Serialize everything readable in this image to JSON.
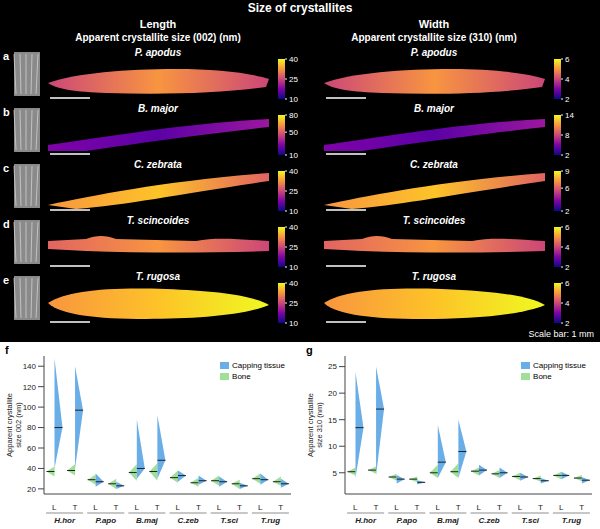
{
  "title": "Size of crystallites",
  "columns": [
    {
      "head": "Length",
      "subtitle": "Apparent crystallite size (002) (nm)"
    },
    {
      "head": "Width",
      "subtitle": "Apparent crystallite size (310) (nm)"
    }
  ],
  "rows": [
    {
      "letter": "a",
      "species": "P. apodus",
      "length_colorbar": {
        "range": [
          10,
          40
        ],
        "ticks": [
          10,
          25,
          40
        ]
      },
      "width_colorbar": {
        "range": [
          2,
          6
        ],
        "ticks": [
          2,
          4,
          6
        ]
      }
    },
    {
      "letter": "b",
      "species": "B. major",
      "length_colorbar": {
        "range": [
          10,
          80
        ],
        "ticks": [
          10,
          50,
          80
        ]
      },
      "width_colorbar": {
        "range": [
          2,
          14
        ],
        "ticks": [
          2,
          8,
          14
        ]
      }
    },
    {
      "letter": "c",
      "species": "C. zebrata",
      "length_colorbar": {
        "range": [
          10,
          40
        ],
        "ticks": [
          10,
          25,
          40
        ]
      },
      "width_colorbar": {
        "range": [
          2,
          9
        ],
        "ticks": [
          2,
          6,
          9
        ]
      }
    },
    {
      "letter": "d",
      "species": "T. scincoides",
      "length_colorbar": {
        "range": [
          10,
          40
        ],
        "ticks": [
          10,
          25,
          40
        ]
      },
      "width_colorbar": {
        "range": [
          2,
          6
        ],
        "ticks": [
          2,
          4,
          6
        ]
      }
    },
    {
      "letter": "e",
      "species": "T. rugosa",
      "length_colorbar": {
        "range": [
          10,
          40
        ],
        "ticks": [
          10,
          25,
          40
        ]
      },
      "width_colorbar": {
        "range": [
          2,
          6
        ],
        "ticks": [
          2,
          4,
          6
        ]
      }
    }
  ],
  "scale_note": "Scale bar: 1 mm",
  "chart_data": [
    {
      "letter": "f",
      "type": "violin",
      "y_label": "Apparent crystallite size 002 (nm)",
      "categories": [
        "L",
        "T",
        "L",
        "T",
        "L",
        "T",
        "L",
        "T",
        "L",
        "T",
        "L",
        "T"
      ],
      "groups": [
        "H.hor",
        "P.apo",
        "B.maj",
        "C.zeb",
        "T.sci",
        "T.rug"
      ],
      "ylim": [
        15,
        150
      ],
      "yticks": [
        20,
        40,
        60,
        80,
        100,
        120,
        140
      ],
      "legend": "top-right",
      "series": [
        {
          "name": "Capping tissue",
          "color": "#6aaee8",
          "median": [
            80,
            97,
            27,
            23,
            40,
            48,
            33,
            28,
            27,
            23,
            29,
            25
          ],
          "low": [
            40,
            40,
            22,
            20,
            30,
            30,
            27,
            24,
            22,
            20,
            24,
            21
          ],
          "high": [
            148,
            140,
            35,
            27,
            88,
            92,
            38,
            33,
            32,
            26,
            35,
            30
          ]
        },
        {
          "name": "Bone",
          "color": "#9fdf98",
          "median": [
            37,
            38,
            29,
            25,
            36,
            37,
            31,
            26,
            28,
            25,
            30,
            27
          ],
          "low": [
            32,
            33,
            24,
            20,
            28,
            28,
            26,
            22,
            23,
            20,
            25,
            23
          ],
          "high": [
            42,
            44,
            34,
            30,
            44,
            45,
            38,
            31,
            33,
            29,
            35,
            32
          ]
        }
      ]
    },
    {
      "letter": "g",
      "type": "violin",
      "y_label": "Apparent crystallite size 310 (nm)",
      "categories": [
        "L",
        "T",
        "L",
        "T",
        "L",
        "T",
        "L",
        "T",
        "L",
        "T",
        "L",
        "T"
      ],
      "groups": [
        "H.hor",
        "P.apo",
        "B.maj",
        "C.zeb",
        "T.sci",
        "T.rug"
      ],
      "ylim": [
        1,
        27
      ],
      "yticks": [
        5,
        10,
        15,
        20,
        25
      ],
      "legend": "top-right",
      "series": [
        {
          "name": "Capping tissue",
          "color": "#6aaee8",
          "median": [
            13.5,
            17,
            3.8,
            3.2,
            7,
            9,
            5.5,
            5,
            4.2,
            3.5,
            4.5,
            3.6
          ],
          "low": [
            4,
            4.5,
            3,
            2.8,
            4,
            4,
            4.5,
            4,
            3.5,
            3,
            3.8,
            3
          ],
          "high": [
            24,
            25,
            4.6,
            3.6,
            14,
            15,
            6.5,
            6,
            5,
            4,
            5.2,
            4.2
          ]
        },
        {
          "name": "Bone",
          "color": "#9fdf98",
          "median": [
            5.2,
            5.5,
            4.2,
            3.8,
            5,
            5.2,
            5.3,
            4.8,
            4.3,
            3.9,
            4.5,
            4
          ],
          "low": [
            4.5,
            4.8,
            3.5,
            3.2,
            4,
            4,
            4.5,
            4,
            3.6,
            3.3,
            3.8,
            3.4
          ],
          "high": [
            6,
            6.2,
            4.8,
            4.3,
            6.5,
            6.8,
            6,
            5.5,
            5,
            4.5,
            5.2,
            4.6
          ]
        }
      ]
    }
  ]
}
